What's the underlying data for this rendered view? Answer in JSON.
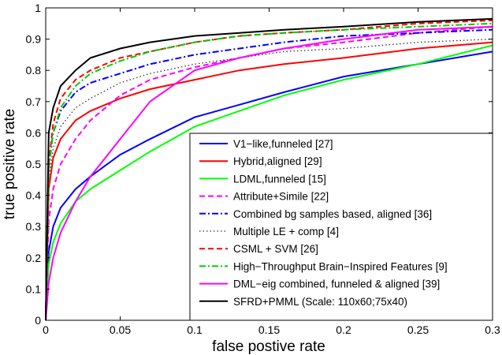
{
  "chart_data": {
    "type": "line",
    "title": "",
    "xlabel": "false postive rate",
    "ylabel": "true positive rate",
    "xlim": [
      0,
      0.3
    ],
    "ylim": [
      0,
      1
    ],
    "xticks": [
      0,
      0.05,
      0.1,
      0.15,
      0.2,
      0.25,
      0.3
    ],
    "xtick_labels": [
      "0",
      "0.05",
      "0.1",
      "0.15",
      "0.2",
      "0.25",
      "0.3"
    ],
    "yticks": [
      0,
      0.1,
      0.2,
      0.3,
      0.4,
      0.5,
      0.6,
      0.7,
      0.8,
      0.9,
      1
    ],
    "ytick_labels": [
      "0",
      "0.1",
      "0.2",
      "0.3",
      "0.4",
      "0.5",
      "0.6",
      "0.7",
      "0.8",
      "0.9",
      "1"
    ],
    "grid": false,
    "legend_position": "bottom-right",
    "series": [
      {
        "name": "V1−like,funneled [27]",
        "color": "#0000ff",
        "dash": "solid",
        "x": [
          0,
          0.002,
          0.005,
          0.01,
          0.02,
          0.03,
          0.05,
          0.07,
          0.1,
          0.13,
          0.16,
          0.2,
          0.25,
          0.3
        ],
        "y": [
          0,
          0.22,
          0.3,
          0.36,
          0.42,
          0.46,
          0.53,
          0.58,
          0.65,
          0.69,
          0.73,
          0.78,
          0.82,
          0.86
        ]
      },
      {
        "name": "Hybrid,aligned [29]",
        "color": "#ff0000",
        "dash": "solid",
        "x": [
          0,
          0.002,
          0.005,
          0.01,
          0.02,
          0.03,
          0.05,
          0.07,
          0.1,
          0.13,
          0.16,
          0.2,
          0.25,
          0.3
        ],
        "y": [
          0,
          0.42,
          0.52,
          0.58,
          0.64,
          0.67,
          0.71,
          0.74,
          0.77,
          0.8,
          0.82,
          0.84,
          0.87,
          0.89
        ]
      },
      {
        "name": "LDML,funneled [15]",
        "color": "#00ff00",
        "dash": "solid",
        "x": [
          0,
          0.002,
          0.005,
          0.01,
          0.02,
          0.03,
          0.05,
          0.07,
          0.1,
          0.13,
          0.16,
          0.2,
          0.25,
          0.3
        ],
        "y": [
          0,
          0.18,
          0.25,
          0.31,
          0.38,
          0.42,
          0.48,
          0.54,
          0.62,
          0.67,
          0.72,
          0.77,
          0.82,
          0.88
        ]
      },
      {
        "name": "Attribute+Simile [22]",
        "color": "#ff00ff",
        "dash": "dashed",
        "x": [
          0,
          0.002,
          0.005,
          0.01,
          0.02,
          0.03,
          0.05,
          0.07,
          0.1,
          0.13,
          0.16,
          0.2,
          0.25,
          0.3
        ],
        "y": [
          0,
          0.32,
          0.42,
          0.5,
          0.58,
          0.64,
          0.72,
          0.77,
          0.81,
          0.84,
          0.87,
          0.89,
          0.92,
          0.94
        ]
      },
      {
        "name": "Combined bg samples based, aligned [36]",
        "color": "#0000ff",
        "dash": "dashdot",
        "x": [
          0,
          0.002,
          0.005,
          0.01,
          0.02,
          0.03,
          0.05,
          0.07,
          0.1,
          0.13,
          0.16,
          0.2,
          0.25,
          0.3
        ],
        "y": [
          0,
          0.5,
          0.6,
          0.67,
          0.73,
          0.76,
          0.79,
          0.82,
          0.85,
          0.87,
          0.89,
          0.91,
          0.92,
          0.93
        ]
      },
      {
        "name": "Multiple LE + comp [4]",
        "color": "#333333",
        "dash": "dotted",
        "x": [
          0,
          0.002,
          0.005,
          0.01,
          0.02,
          0.03,
          0.05,
          0.07,
          0.1,
          0.13,
          0.16,
          0.2,
          0.25,
          0.3
        ],
        "y": [
          0,
          0.45,
          0.55,
          0.62,
          0.68,
          0.71,
          0.76,
          0.79,
          0.82,
          0.84,
          0.86,
          0.87,
          0.89,
          0.9
        ]
      },
      {
        "name": "CSML + SVM [26]",
        "color": "#ff0000",
        "dash": "dashed",
        "x": [
          0,
          0.002,
          0.005,
          0.01,
          0.02,
          0.03,
          0.05,
          0.07,
          0.1,
          0.13,
          0.16,
          0.2,
          0.25,
          0.3
        ],
        "y": [
          0,
          0.5,
          0.63,
          0.71,
          0.77,
          0.8,
          0.84,
          0.86,
          0.89,
          0.91,
          0.92,
          0.93,
          0.95,
          0.96
        ]
      },
      {
        "name": "High−Throughput Brain−Inspired Features [9]",
        "color": "#00cc00",
        "dash": "dashdot",
        "x": [
          0,
          0.002,
          0.005,
          0.01,
          0.02,
          0.03,
          0.05,
          0.07,
          0.1,
          0.13,
          0.16,
          0.2,
          0.25,
          0.3
        ],
        "y": [
          0,
          0.48,
          0.6,
          0.68,
          0.75,
          0.79,
          0.83,
          0.86,
          0.89,
          0.91,
          0.92,
          0.93,
          0.94,
          0.95
        ]
      },
      {
        "name": "DML−eig combined, funneled & aligned [39]",
        "color": "#ff00ff",
        "dash": "solid",
        "x": [
          0,
          0.002,
          0.005,
          0.01,
          0.02,
          0.03,
          0.05,
          0.07,
          0.1,
          0.13,
          0.16,
          0.2,
          0.25,
          0.3
        ],
        "y": [
          0,
          0.12,
          0.2,
          0.28,
          0.38,
          0.46,
          0.58,
          0.7,
          0.8,
          0.84,
          0.87,
          0.9,
          0.93,
          0.94
        ]
      },
      {
        "name": "SFRD+PMML (Scale: 110x60;75x40)",
        "color": "#000000",
        "dash": "solid",
        "x": [
          0,
          0.002,
          0.005,
          0.01,
          0.02,
          0.03,
          0.05,
          0.07,
          0.1,
          0.13,
          0.16,
          0.2,
          0.25,
          0.3
        ],
        "y": [
          0,
          0.6,
          0.68,
          0.75,
          0.8,
          0.84,
          0.87,
          0.89,
          0.91,
          0.92,
          0.93,
          0.94,
          0.955,
          0.965
        ]
      }
    ]
  }
}
